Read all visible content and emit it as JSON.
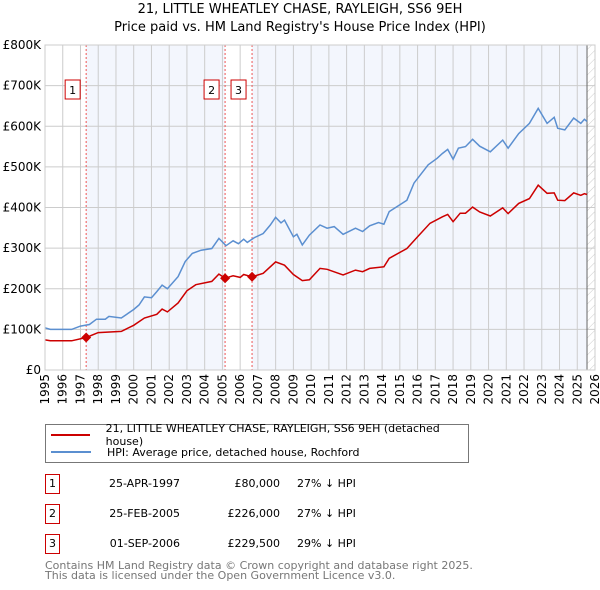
{
  "chart_data": {
    "type": "line",
    "title": "21, LITTLE WHEATLEY CHASE, RAYLEIGH, SS6 9EH",
    "subtitle": "Price paid vs. HM Land Registry's House Price Index (HPI)",
    "xlim": [
      1995,
      2026
    ],
    "ylim": [
      0,
      800000
    ],
    "y_ticks": [
      {
        "v": 0,
        "label": "£0"
      },
      {
        "v": 100000,
        "label": "£100K"
      },
      {
        "v": 200000,
        "label": "£200K"
      },
      {
        "v": 300000,
        "label": "£300K"
      },
      {
        "v": 400000,
        "label": "£400K"
      },
      {
        "v": 500000,
        "label": "£500K"
      },
      {
        "v": 600000,
        "label": "£600K"
      },
      {
        "v": 700000,
        "label": "£700K"
      },
      {
        "v": 800000,
        "label": "£800K"
      }
    ],
    "x_ticks": [
      "1995",
      "1996",
      "1997",
      "1998",
      "1999",
      "2000",
      "2001",
      "2002",
      "2003",
      "2004",
      "2005",
      "2006",
      "2007",
      "2008",
      "2009",
      "2010",
      "2011",
      "2012",
      "2013",
      "2014",
      "2015",
      "2016",
      "2017",
      "2018",
      "2019",
      "2020",
      "2021",
      "2022",
      "2023",
      "2024",
      "2025",
      "2026"
    ],
    "grid": true,
    "data_end": 2025.55,
    "series": [
      {
        "name": "21, LITTLE WHEATLEY CHASE, RAYLEIGH, SS6 9EH (detached house)",
        "color": "#cc0000",
        "x": [
          1995,
          1995.3,
          1996.5,
          1997.32,
          1998,
          1999.3,
          2000,
          2000.6,
          2001.3,
          2001.6,
          2001.9,
          2002.5,
          2003,
          2003.5,
          2004.4,
          2004.8,
          2005.15,
          2005.6,
          2006,
          2006.2,
          2006.67,
          2007.3,
          2008,
          2008.5,
          2009,
          2009.5,
          2009.9,
          2010.5,
          2010.9,
          2011.8,
          2012.5,
          2012.9,
          2013.3,
          2014.1,
          2014.4,
          2015.4,
          2016,
          2016.7,
          2017.4,
          2017.7,
          2018,
          2018.4,
          2018.7,
          2019.1,
          2019.5,
          2020.1,
          2020.8,
          2021.1,
          2021.7,
          2022.3,
          2022.8,
          2023.3,
          2023.7,
          2023.9,
          2024.3,
          2024.8,
          2025.2,
          2025.4,
          2025.55
        ],
        "y": [
          74000,
          72000,
          72000,
          80000,
          92000,
          95000,
          110000,
          128000,
          137000,
          150000,
          143000,
          165000,
          195000,
          210000,
          218000,
          236000,
          226000,
          232000,
          228000,
          235000,
          229500,
          238000,
          266000,
          258000,
          235000,
          220000,
          222000,
          250000,
          248000,
          234000,
          246000,
          242000,
          250000,
          254000,
          275000,
          299000,
          328000,
          361000,
          377000,
          383000,
          365000,
          386000,
          386000,
          401000,
          389000,
          379000,
          399000,
          385000,
          410000,
          422000,
          455000,
          435000,
          436000,
          418000,
          417000,
          436000,
          430000,
          434000,
          432000
        ]
      },
      {
        "name": "HPI: Average price, detached house, Rochford",
        "color": "#5b8fd0",
        "x": [
          1995,
          1995.3,
          1996.5,
          1997,
          1997.5,
          1997.9,
          1998.4,
          1998.6,
          1999.3,
          2000,
          2000.3,
          2000.6,
          2001,
          2001.3,
          2001.6,
          2001.9,
          2002.5,
          2002.9,
          2003.3,
          2003.8,
          2004.4,
          2004.8,
          2005.2,
          2005.6,
          2005.9,
          2006.2,
          2006.4,
          2006.8,
          2007.3,
          2007.7,
          2008,
          2008.3,
          2008.5,
          2009,
          2009.2,
          2009.5,
          2009.9,
          2010.5,
          2010.9,
          2011.3,
          2011.8,
          2012.5,
          2012.9,
          2013.3,
          2013.8,
          2014.1,
          2014.4,
          2015.4,
          2015.8,
          2016.6,
          2017.1,
          2017.4,
          2017.7,
          2018,
          2018.3,
          2018.7,
          2019.1,
          2019.5,
          2020.1,
          2020.8,
          2021.1,
          2021.7,
          2022.3,
          2022.8,
          2023.3,
          2023.7,
          2023.9,
          2024.3,
          2024.8,
          2025.2,
          2025.4,
          2025.55
        ],
        "y": [
          104000,
          100000,
          100000,
          108000,
          112000,
          125000,
          125000,
          132000,
          128000,
          149000,
          160000,
          180000,
          178000,
          193000,
          209000,
          200000,
          230000,
          267000,
          287000,
          295000,
          299000,
          324000,
          306000,
          318000,
          311000,
          322000,
          314000,
          326000,
          336000,
          357000,
          376000,
          362000,
          369000,
          328000,
          334000,
          308000,
          332000,
          357000,
          349000,
          353000,
          334000,
          349000,
          341000,
          355000,
          363000,
          359000,
          390000,
          418000,
          460000,
          505000,
          521000,
          533000,
          543000,
          519000,
          546000,
          550000,
          568000,
          551000,
          537000,
          566000,
          546000,
          582000,
          607000,
          644000,
          607000,
          622000,
          595000,
          591000,
          620000,
          607000,
          617000,
          612000
        ]
      }
    ],
    "sales": [
      {
        "id": "1",
        "x": 1997.32,
        "price": 80000,
        "date": "25-APR-1997",
        "price_label": "£80,000",
        "hpi": "27% ↓ HPI"
      },
      {
        "id": "2",
        "x": 2005.15,
        "price": 226000,
        "date": "25-FEB-2005",
        "price_label": "£226,000",
        "hpi": "27% ↓ HPI"
      },
      {
        "id": "3",
        "x": 2006.67,
        "price": 229500,
        "date": "01-SEP-2006",
        "price_label": "£229,500",
        "hpi": "29% ↓ HPI"
      }
    ],
    "legend_position": "below"
  },
  "footer": [
    "Contains HM Land Registry data © Crown copyright and database right 2025.",
    "This data is licensed under the Open Government Licence v3.0."
  ]
}
